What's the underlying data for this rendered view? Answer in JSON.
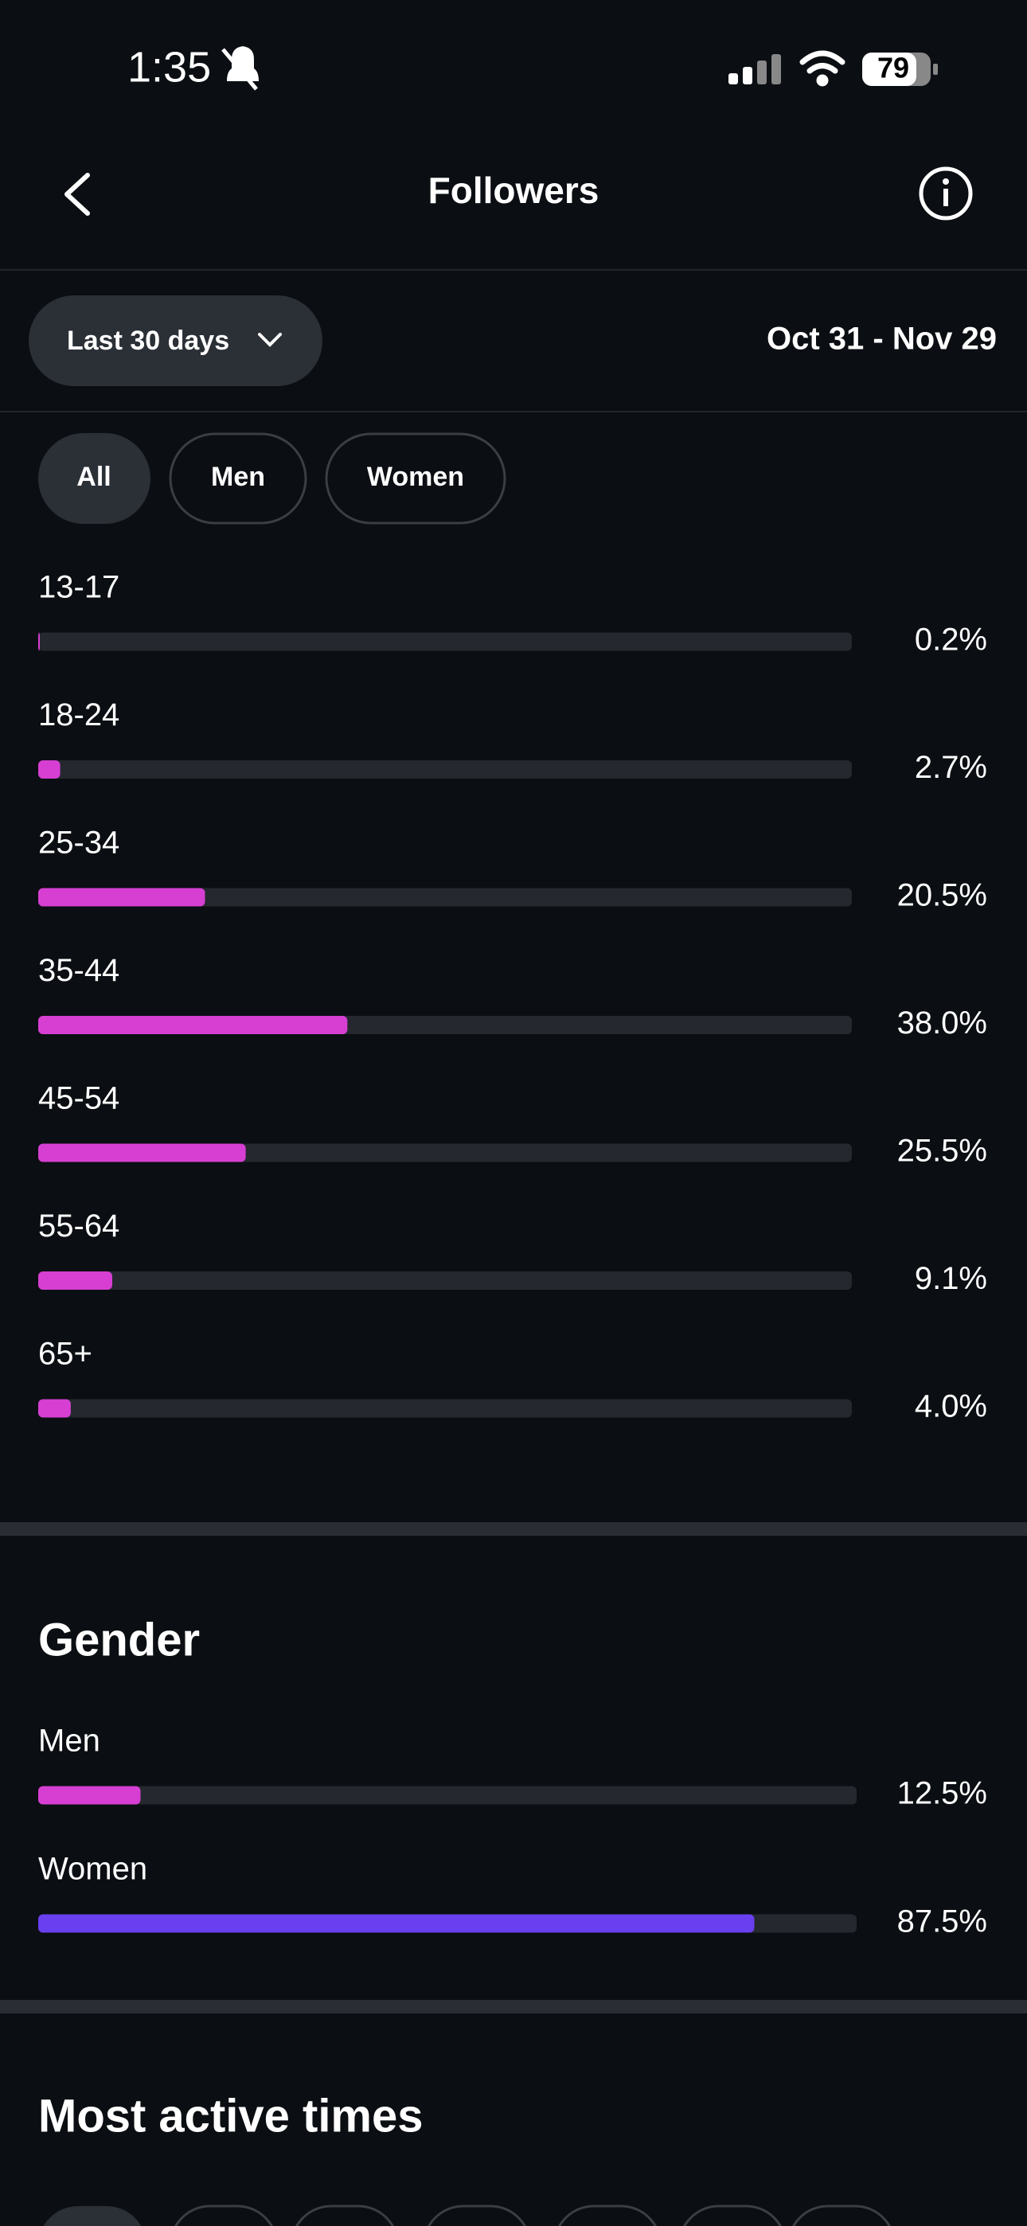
{
  "status_bar": {
    "time": "1:35",
    "battery": "79"
  },
  "header": {
    "title": "Followers"
  },
  "filter": {
    "range": "Last 30 days",
    "dates": "Oct 31 - Nov 29"
  },
  "tabs": [
    "All",
    "Men",
    "Women"
  ],
  "age_chart": {
    "type": "bar",
    "categories": [
      "13-17",
      "18-24",
      "25-34",
      "35-44",
      "45-54",
      "55-64",
      "65+"
    ],
    "values": [
      0.2,
      2.7,
      20.5,
      38.0,
      25.5,
      9.1,
      4.0
    ],
    "value_labels": [
      "0.2%",
      "2.7%",
      "20.5%",
      "38.0%",
      "25.5%",
      "9.1%",
      "4.0%"
    ],
    "xlim": [
      0,
      100
    ],
    "color": "#d63fd2"
  },
  "gender_chart": {
    "type": "bar",
    "title": "Gender",
    "categories": [
      "Men",
      "Women"
    ],
    "values": [
      12.5,
      87.5
    ],
    "value_labels": [
      "12.5%",
      "87.5%"
    ],
    "xlim": [
      0,
      100
    ],
    "colors": [
      "#d63fd2",
      "#6a3ff0"
    ]
  },
  "active_times": {
    "title": "Most active times"
  }
}
